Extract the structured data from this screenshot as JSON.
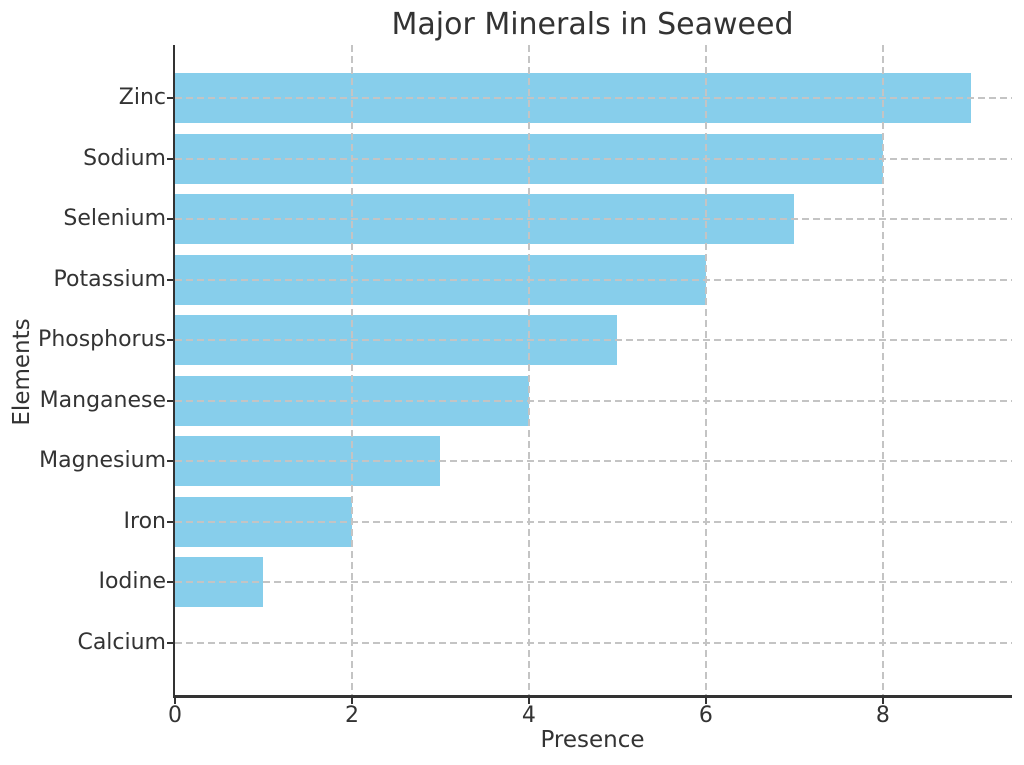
{
  "chart_data": {
    "type": "bar",
    "orientation": "horizontal",
    "title": "Major Minerals in Seaweed",
    "xlabel": "Presence",
    "ylabel": "Elements",
    "categories": [
      "Zinc",
      "Sodium",
      "Selenium",
      "Potassium",
      "Phosphorus",
      "Manganese",
      "Magnesium",
      "Iron",
      "Iodine",
      "Calcium"
    ],
    "values": [
      9,
      8,
      7,
      6,
      5,
      4,
      3,
      2,
      1,
      0
    ],
    "xticks": [
      0,
      2,
      4,
      6,
      8
    ],
    "xlim": [
      0,
      9.46
    ],
    "grid": {
      "linestyle": "dashed",
      "axes": "both",
      "above_bars": true
    },
    "legend": "none",
    "colors": {
      "bar": "#87CEEB",
      "grid": "#c4c4c4",
      "text": "#333333",
      "axis": "#333333",
      "background": "#ffffff"
    }
  }
}
